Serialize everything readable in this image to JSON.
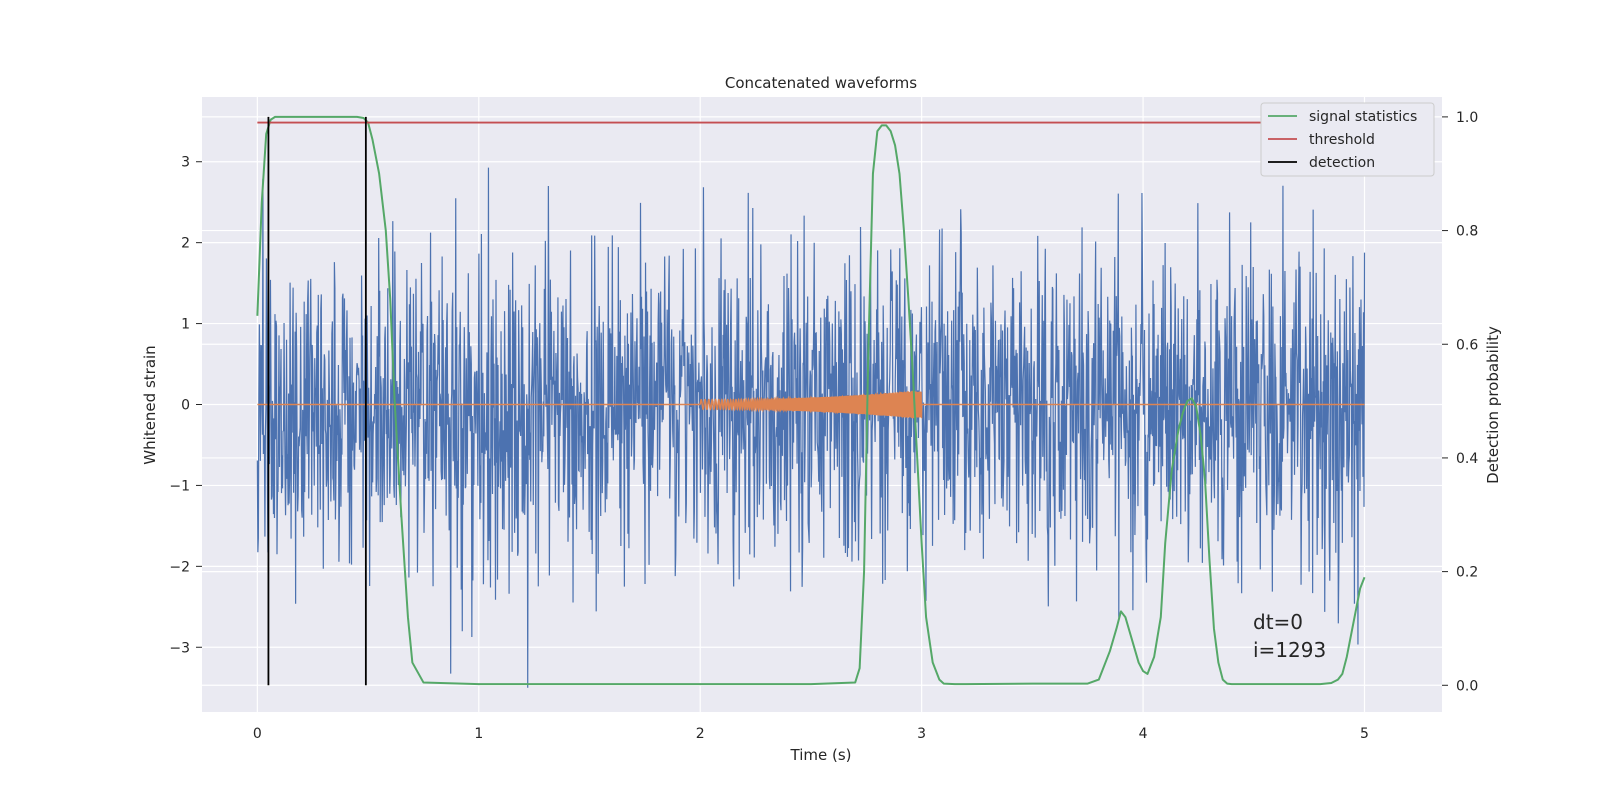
{
  "chart_data": {
    "type": "line",
    "title": "Concatenated waveforms",
    "xlabel": "Time (s)",
    "ylabel": "Whitened strain",
    "ylabel_right": "Detection probability",
    "xlim": [
      -0.25,
      5.35
    ],
    "ylim": [
      -3.8,
      3.8
    ],
    "ylim_right": [
      -0.047,
      1.035
    ],
    "x_ticks": [
      0,
      1,
      2,
      3,
      4,
      5
    ],
    "x_tick_labels": [
      "0",
      "1",
      "2",
      "3",
      "4",
      "5"
    ],
    "y_ticks": [
      -3,
      -2,
      -1,
      0,
      1,
      2,
      3
    ],
    "y_tick_labels": [
      "−3",
      "−2",
      "−1",
      "0",
      "1",
      "2",
      "3"
    ],
    "y_right_ticks": [
      0.0,
      0.2,
      0.4,
      0.6,
      0.8,
      1.0
    ],
    "y_right_tick_labels": [
      "0.0",
      "0.2",
      "0.4",
      "0.6",
      "0.8",
      "1.0"
    ],
    "grid": true,
    "legend_position": "top-right",
    "colors": {
      "strain": "#4c72b0",
      "template": "#dd8452",
      "signal_statistics": "#55a868",
      "threshold": "#c44e52",
      "detection": "#000000",
      "background": "#eaeaf2",
      "grid": "#ffffff"
    },
    "legend": [
      "signal statistics",
      "threshold",
      "detection"
    ],
    "annotations": [
      "dt=0",
      "i=1293"
    ],
    "noise_strain": {
      "x_range": [
        0,
        5
      ],
      "typical_range": [
        -1.5,
        1.5
      ],
      "peak_max": 3.4,
      "peak_min": -3.5
    },
    "template_waveform": {
      "x_range": [
        2,
        3
      ],
      "amplitude_start": 0.06,
      "amplitude_end": 0.18,
      "flat_value": 0
    },
    "series": [
      {
        "name": "signal statistics",
        "axis": "right",
        "x": [
          0,
          0.02,
          0.04,
          0.06,
          0.08,
          0.1,
          0.15,
          0.3,
          0.45,
          0.48,
          0.5,
          0.52,
          0.55,
          0.58,
          0.6,
          0.62,
          0.65,
          0.68,
          0.7,
          0.75,
          1.0,
          2.0,
          2.5,
          2.7,
          2.72,
          2.74,
          2.76,
          2.78,
          2.8,
          2.82,
          2.84,
          2.86,
          2.88,
          2.9,
          2.92,
          2.94,
          2.96,
          2.98,
          3.0,
          3.02,
          3.05,
          3.08,
          3.1,
          3.15,
          3.2,
          3.5,
          3.75,
          3.8,
          3.85,
          3.88,
          3.9,
          3.92,
          3.95,
          3.98,
          4.0,
          4.02,
          4.05,
          4.08,
          4.1,
          4.13,
          4.16,
          4.18,
          4.2,
          4.22,
          4.24,
          4.26,
          4.28,
          4.3,
          4.32,
          4.34,
          4.36,
          4.38,
          4.4,
          4.45,
          4.6,
          4.8,
          4.85,
          4.88,
          4.9,
          4.92,
          4.94,
          4.96,
          4.98,
          5.0
        ],
        "values": [
          0.65,
          0.85,
          0.97,
          0.995,
          1.0,
          1.0,
          1.0,
          1.0,
          1.0,
          0.998,
          0.99,
          0.96,
          0.9,
          0.8,
          0.68,
          0.5,
          0.3,
          0.12,
          0.04,
          0.005,
          0.002,
          0.002,
          0.002,
          0.005,
          0.03,
          0.2,
          0.6,
          0.9,
          0.975,
          0.985,
          0.985,
          0.975,
          0.95,
          0.9,
          0.8,
          0.68,
          0.55,
          0.4,
          0.25,
          0.12,
          0.04,
          0.01,
          0.003,
          0.002,
          0.002,
          0.003,
          0.003,
          0.01,
          0.06,
          0.1,
          0.13,
          0.12,
          0.08,
          0.04,
          0.025,
          0.02,
          0.05,
          0.12,
          0.25,
          0.38,
          0.45,
          0.48,
          0.5,
          0.505,
          0.49,
          0.44,
          0.36,
          0.22,
          0.1,
          0.04,
          0.01,
          0.003,
          0.002,
          0.002,
          0.002,
          0.002,
          0.004,
          0.01,
          0.02,
          0.05,
          0.09,
          0.13,
          0.17,
          0.19
        ]
      },
      {
        "name": "threshold",
        "axis": "right",
        "x": [
          0,
          5
        ],
        "values": [
          0.99,
          0.99
        ]
      },
      {
        "name": "detection",
        "axis": "right",
        "type": "vlines",
        "x": [
          0.05,
          0.49
        ],
        "ymin": 0.0,
        "ymax": 1.0
      }
    ]
  }
}
